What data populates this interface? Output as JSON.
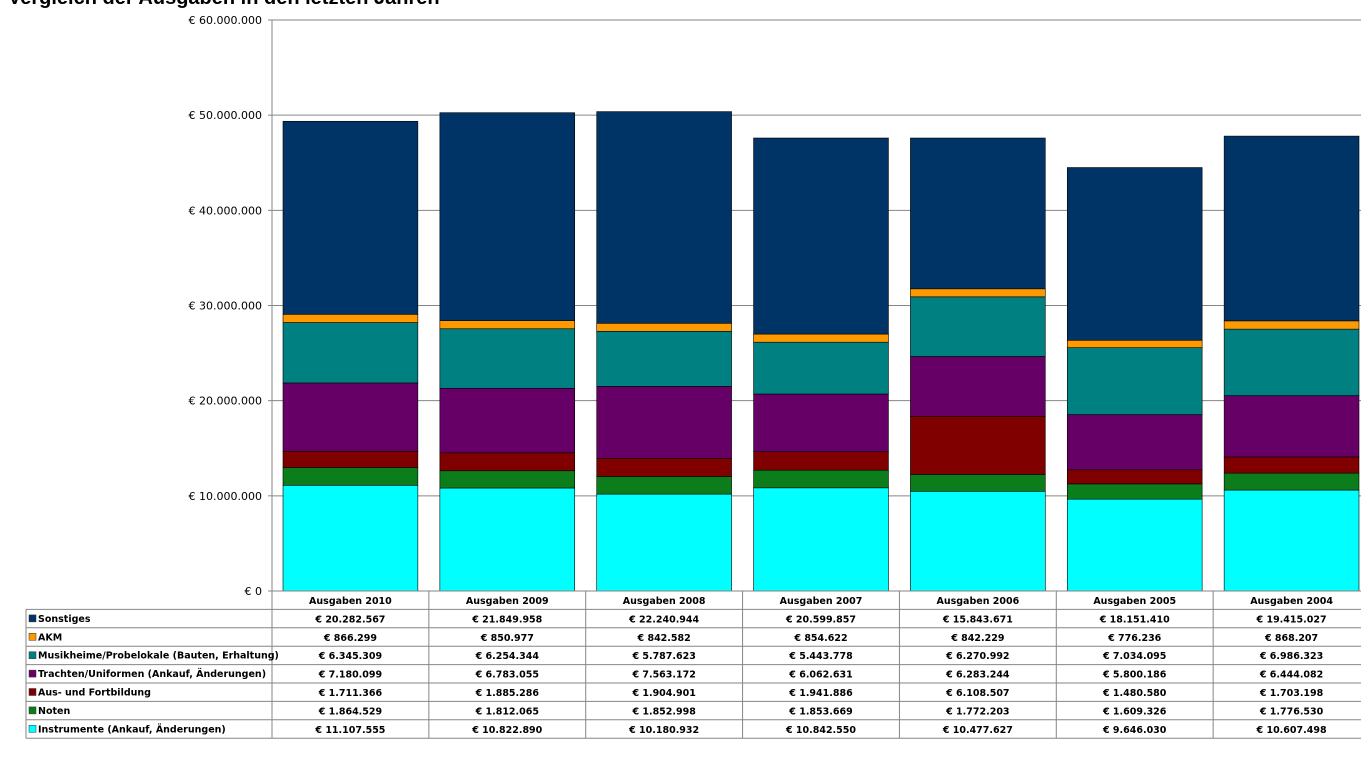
{
  "title": "Vergleich der Ausgaben in den letzten Jahren",
  "chart_data": {
    "type": "bar",
    "stacked": true,
    "categories": [
      "Ausgaben 2010",
      "Ausgaben 2009",
      "Ausgaben 2008",
      "Ausgaben 2007",
      "Ausgaben 2006",
      "Ausgaben 2005",
      "Ausgaben 2004"
    ],
    "ylim": [
      0,
      60000000
    ],
    "yticks": [
      0,
      10000000,
      20000000,
      30000000,
      40000000,
      50000000,
      60000000
    ],
    "ytick_labels": [
      "€ 0",
      "€ 10.000.000",
      "€ 20.000.000",
      "€ 30.000.000",
      "€ 40.000.000",
      "€ 50.000.000",
      "€ 60.000.000"
    ],
    "grid": true,
    "legend_in_data_table": true,
    "series": [
      {
        "name": "Instrumente (Ankauf, Änderungen)",
        "color": "#00ffff",
        "values": [
          11107555,
          10822890,
          10180932,
          10842550,
          10477627,
          9646030,
          10607498
        ],
        "labels": [
          "€ 11.107.555",
          "€ 10.822.890",
          "€ 10.180.932",
          "€ 10.842.550",
          "€ 10.477.627",
          "€ 9.646.030",
          "€ 10.607.498"
        ]
      },
      {
        "name": "Noten",
        "color": "#0b7d1b",
        "values": [
          1864529,
          1812065,
          1852998,
          1853669,
          1772203,
          1609326,
          1776530
        ],
        "labels": [
          "€ 1.864.529",
          "€ 1.812.065",
          "€ 1.852.998",
          "€ 1.853.669",
          "€ 1.772.203",
          "€ 1.609.326",
          "€ 1.776.530"
        ]
      },
      {
        "name": "Aus- und Fortbildung",
        "color": "#800000",
        "values": [
          1711366,
          1885286,
          1904901,
          1941886,
          6108507,
          1480580,
          1703198
        ],
        "labels": [
          "€ 1.711.366",
          "€ 1.885.286",
          "€ 1.904.901",
          "€ 1.941.886",
          "€ 6.108.507",
          "€ 1.480.580",
          "€ 1.703.198"
        ]
      },
      {
        "name": "Trachten/Uniformen (Ankauf, Änderungen)",
        "color": "#660066",
        "values": [
          7180099,
          6783055,
          7563172,
          6062631,
          6283244,
          5800186,
          6444082
        ],
        "labels": [
          "€ 7.180.099",
          "€ 6.783.055",
          "€ 7.563.172",
          "€ 6.062.631",
          "€ 6.283.244",
          "€ 5.800.186",
          "€ 6.444.082"
        ]
      },
      {
        "name": "Musikheime/Probelokale (Bauten, Erhaltung)",
        "color": "#008080",
        "values": [
          6345309,
          6254344,
          5787623,
          5443778,
          6270992,
          7034095,
          6986323
        ],
        "labels": [
          "€ 6.345.309",
          "€ 6.254.344",
          "€ 5.787.623",
          "€ 5.443.778",
          "€ 6.270.992",
          "€ 7.034.095",
          "€ 6.986.323"
        ]
      },
      {
        "name": "AKM",
        "color": "#ff9900",
        "values": [
          866299,
          850977,
          842582,
          854622,
          842229,
          776236,
          868207
        ],
        "labels": [
          "€ 866.299",
          "€ 850.977",
          "€ 842.582",
          "€ 854.622",
          "€ 842.229",
          "€ 776.236",
          "€ 868.207"
        ]
      },
      {
        "name": "Sonstiges",
        "color": "#003366",
        "values": [
          20282567,
          21849958,
          22240944,
          20599857,
          15843671,
          18151410,
          19415027
        ],
        "labels": [
          "€ 20.282.567",
          "€ 21.849.958",
          "€ 22.240.944",
          "€ 20.599.857",
          "€ 15.843.671",
          "€ 18.151.410",
          "€ 19.415.027"
        ]
      }
    ],
    "table_row_order": [
      "Sonstiges",
      "AKM",
      "Musikheime/Probelokale (Bauten, Erhaltung)",
      "Trachten/Uniformen (Ankauf, Änderungen)",
      "Aus- und Fortbildung",
      "Noten",
      "Instrumente (Ankauf, Änderungen)"
    ]
  }
}
